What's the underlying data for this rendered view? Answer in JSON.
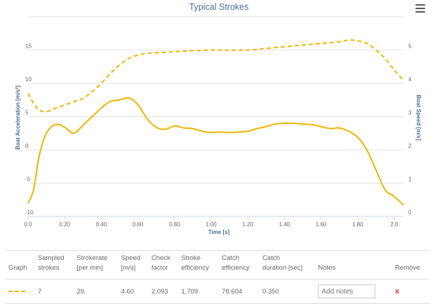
{
  "chart_data": {
    "type": "line",
    "title": "Typical Strokes",
    "xlabel": "Time [s]",
    "ylabel_left": "Boat Acceleration [m/s²]",
    "ylabel_right": "Boat Speed [m/s]",
    "xlim": [
      0,
      2.05
    ],
    "ylim_left": [
      -10,
      20
    ],
    "ylim_right": [
      0,
      6
    ],
    "x_ticks": [
      "0.0",
      "0.20",
      "0.40",
      "0.60",
      "0.80",
      "1.00",
      "1.20",
      "1.40",
      "1.60",
      "1.80",
      "2.0"
    ],
    "y_left_ticks": [
      "-10",
      "-5",
      "0",
      "5",
      "10",
      "15"
    ],
    "y_right_ticks": [
      "0",
      "1",
      "2",
      "3",
      "4",
      "5"
    ],
    "grid": true,
    "series": [
      {
        "axis": "left",
        "style": "solid",
        "color": "#f0b400",
        "x": [
          0,
          0.03,
          0.06,
          0.1,
          0.15,
          0.2,
          0.25,
          0.3,
          0.35,
          0.4,
          0.45,
          0.5,
          0.55,
          0.6,
          0.65,
          0.7,
          0.75,
          0.8,
          0.85,
          0.9,
          0.95,
          1.0,
          1.05,
          1.1,
          1.15,
          1.2,
          1.25,
          1.3,
          1.35,
          1.4,
          1.45,
          1.5,
          1.55,
          1.6,
          1.65,
          1.7,
          1.75,
          1.8,
          1.85,
          1.9,
          1.95,
          2.0,
          2.05
        ],
        "y": [
          -8,
          -6,
          -1,
          2.5,
          3.8,
          3.4,
          2.5,
          3.7,
          5,
          6.3,
          7.3,
          7.5,
          7.8,
          6.8,
          4.7,
          3.4,
          3.1,
          3.6,
          3.3,
          3.2,
          2.8,
          2.6,
          2.7,
          2.6,
          2.7,
          2.8,
          3.2,
          3.5,
          3.9,
          4.0,
          4.0,
          3.9,
          3.8,
          3.5,
          3.2,
          3.3,
          2.8,
          1.9,
          0,
          -3,
          -6,
          -7,
          -8.3
        ]
      },
      {
        "axis": "right",
        "style": "dashed",
        "color": "#f0b400",
        "x": [
          0,
          0.03,
          0.06,
          0.1,
          0.15,
          0.2,
          0.25,
          0.3,
          0.35,
          0.4,
          0.45,
          0.5,
          0.55,
          0.6,
          0.65,
          0.7,
          0.8,
          0.9,
          1.0,
          1.1,
          1.2,
          1.3,
          1.4,
          1.5,
          1.6,
          1.7,
          1.75,
          1.8,
          1.85,
          1.9,
          1.95,
          2.0,
          2.05
        ],
        "y": [
          3.7,
          3.4,
          3.2,
          3.15,
          3.25,
          3.35,
          3.45,
          3.55,
          3.75,
          4.0,
          4.3,
          4.55,
          4.75,
          4.85,
          4.9,
          4.92,
          4.95,
          4.98,
          5.0,
          5.0,
          5.0,
          5.05,
          5.1,
          5.15,
          5.2,
          5.25,
          5.3,
          5.28,
          5.2,
          5.0,
          4.75,
          4.4,
          4.1
        ]
      }
    ]
  },
  "table": {
    "headers": [
      "Graph",
      "Sampled\nstrokes",
      "Strokerate\n[per min]",
      "Speed\n[m/s]",
      "Check\nfactor",
      "Stroke\nefficiency",
      "Catch\nefficiency",
      "Catch\nduration [sec]",
      "Notes",
      "Remove"
    ],
    "row": {
      "sampled_strokes": "7",
      "strokerate": "29",
      "speed": "4.60",
      "check_factor": "2.093",
      "stroke_efficiency": "1.709",
      "catch_efficiency": "78.604",
      "catch_duration": "0.350",
      "notes_placeholder": "Add notes",
      "remove": "x"
    }
  }
}
